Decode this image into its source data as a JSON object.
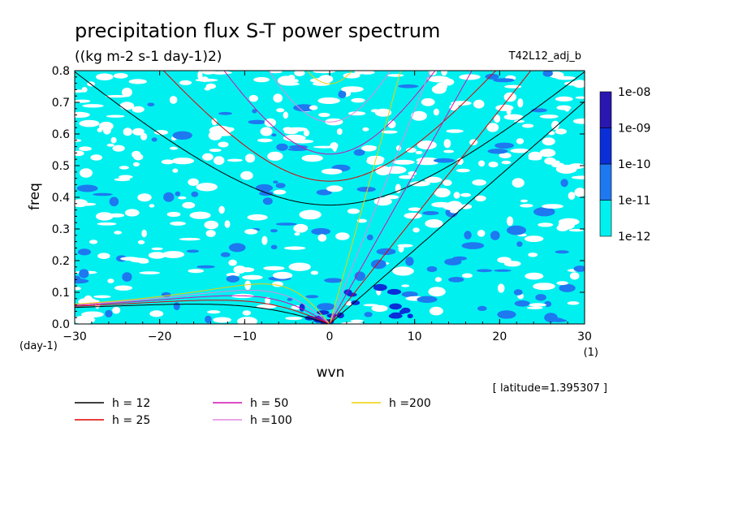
{
  "chart_data": {
    "type": "heatmap",
    "title": "precipitation flux S-T power spectrum",
    "subtitle": "((kg m-2 s-1 day-1)2)",
    "experiment": "T42L12_adj_b",
    "xlabel": "wvn",
    "ylabel": "freq",
    "x_unit": "(1)",
    "y_unit": "(day-1)",
    "xlim": [
      -30,
      30
    ],
    "ylim": [
      0,
      0.8
    ],
    "x_ticks": [
      "-30",
      "-20",
      "-10",
      "0",
      "10",
      "20",
      "30"
    ],
    "y_ticks": [
      "0.0",
      "0.1",
      "0.2",
      "0.3",
      "0.4",
      "0.5",
      "0.6",
      "0.7",
      "0.8"
    ],
    "colorbar": {
      "levels": [
        "1e-12",
        "1e-11",
        "1e-10",
        "1e-09",
        "1e-08"
      ],
      "colors": [
        "#00f0f0",
        "#1e78f0",
        "#0a2ed8",
        "#2a16b0"
      ]
    },
    "dispersion_curves": [
      {
        "label": "h = 12",
        "h": 12,
        "color": "#000000"
      },
      {
        "label": "h = 25",
        "h": 25,
        "color": "#e00000"
      },
      {
        "label": "h = 50",
        "h": 50,
        "color": "#d010b0"
      },
      {
        "label": "h =100",
        "h": 100,
        "color": "#e088e0"
      },
      {
        "label": "h =200",
        "h": 200,
        "color": "#f0d000"
      }
    ],
    "annotation": "[ latitude=1.395307 ]"
  }
}
